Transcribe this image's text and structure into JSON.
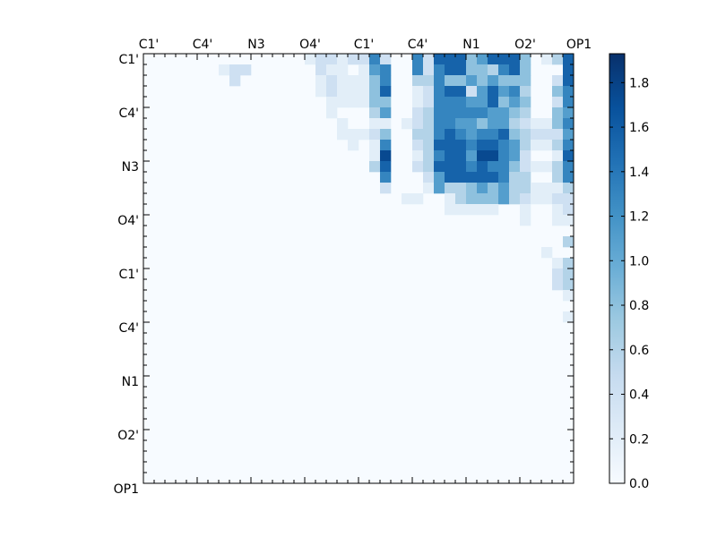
{
  "chart_data": {
    "type": "heatmap",
    "title": "",
    "xlabel": "",
    "ylabel": "",
    "n_cells": 40,
    "x_tick_labels": [
      "C1'",
      "C4'",
      "N3",
      "O4'",
      "C1'",
      "C4'",
      "N1",
      "O2'",
      "OP1"
    ],
    "y_tick_labels": [
      "C1'",
      "C4'",
      "N3",
      "O4'",
      "C1'",
      "C4'",
      "N1",
      "O2'",
      "OP1"
    ],
    "label_tick_indices": [
      0,
      5,
      10,
      15,
      20,
      25,
      30,
      35,
      40
    ],
    "grid": false,
    "colormap": "Blues",
    "colormap_stops": [
      "#f7fbff",
      "#deebf7",
      "#c6dbef",
      "#9ecae1",
      "#6baed6",
      "#4292c6",
      "#2171b5",
      "#08519c",
      "#08306b"
    ],
    "colorbar": {
      "position": "right",
      "vmin": 0.0,
      "vmax": 1.93,
      "tick_values": [
        0.0,
        0.2,
        0.4,
        0.6,
        0.8,
        1.0,
        1.2,
        1.4,
        1.6,
        1.8
      ],
      "tick_labels": [
        "0.0",
        "0.2",
        "0.4",
        "0.6",
        "0.8",
        "1.0",
        "1.2",
        "1.4",
        "1.6",
        "1.8"
      ]
    },
    "rows": [
      "0000000000000001221226200627774577740137401",
      "0000000122000000211015600626774436740007650",
      "0000000020000000121114600336445454440027451",
      "0000000000000000121114700126772575630046760",
      "0000000000000000011114400126665574540026476",
      "0000000000000000010003500236666655430045466",
      "0000000000000000001001101236655455321146665",
      "0000000000000000001112400336765667432225365",
      "0000000000000000000101600237776776531136676",
      "0000000000000000000001800136775886520017755",
      "0000000000000000000003700237776766421136565",
      "0000000000000000000000600025777776330036664",
      "0000000000000000000000200015334545331113542",
      "0000000000000000000000001100134445321122231",
      "0000000000000000000000000000111110010012110",
      "0000000000000000000000000000000000010011211",
      "0000000000000000000000000000000000000000111",
      "0000000000000000000000000000000000000003111",
      "0000000000000000000000000000000000000100221",
      "0000000000000000000000000000000000000013232",
      "0000000000000000000000000000000000000023211",
      "0000000000000000000000000000000000000023211",
      "0000000000000000000000000000000000000001221",
      "0000000000000000000000000000000000000000151",
      "0000000000000000000000000000000000000001121",
      "0000000000000000000000000000000000000000021",
      "0000000000000000000000000000000000000000010",
      "0000000000000000000000000000000000000000001",
      "0000000000000000000000000000000000000000001",
      "0000000000000000000000000000000000000000001",
      "0000000000000000000000000000000000000000001",
      "0000000000000000000000000000000000000000001",
      "0000000000000000000000000000000000000000001",
      "0000000000000000000000000000000000000000001",
      "0000000000000000000000000000000000000000001",
      "0000000000000000000000000000000000000000001",
      "0000000000000000000000000000000000000000001",
      "0000000000000000000000000000000000000000001",
      "0000000000000000000000000000000000000000001",
      "0000000000000000000000000000000000000000001"
    ],
    "level_values": [
      0.0,
      0.2,
      0.4,
      0.6,
      0.8,
      1.1,
      1.3,
      1.55,
      1.75,
      1.9
    ]
  }
}
